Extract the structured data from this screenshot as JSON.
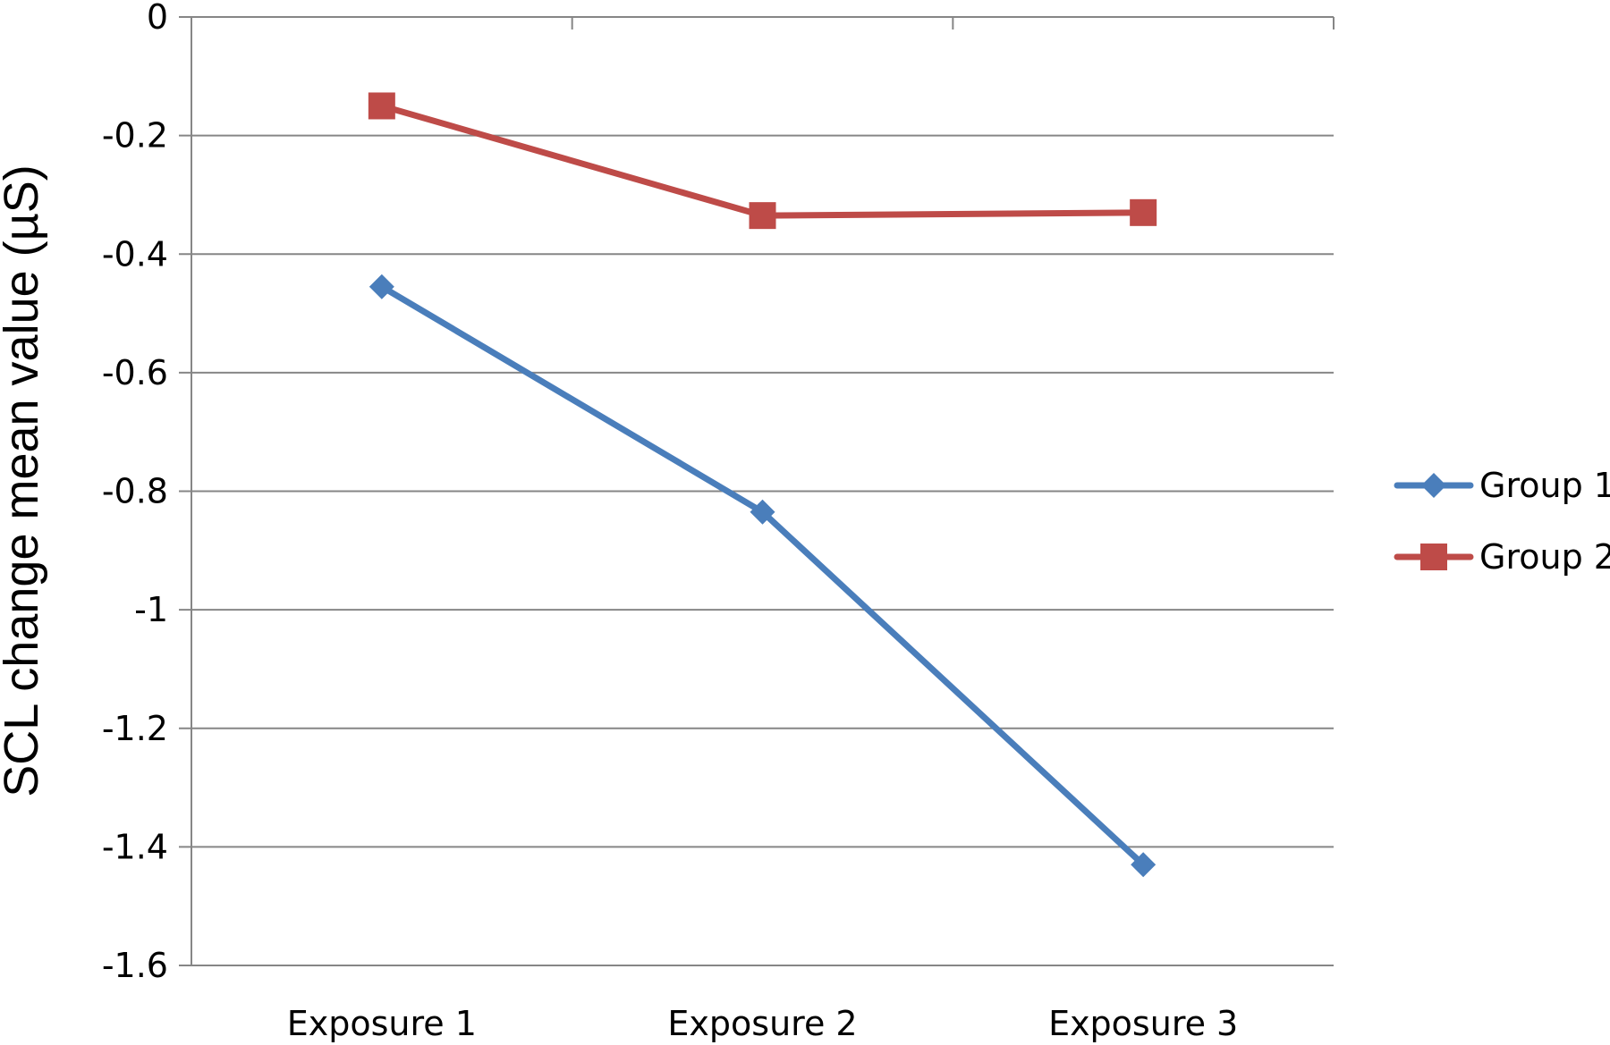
{
  "chart_data": {
    "type": "line",
    "categories": [
      "Exposure 1",
      "Exposure 2",
      "Exposure 3"
    ],
    "series": [
      {
        "name": "Group 1",
        "values": [
          -0.455,
          -0.835,
          -1.43
        ],
        "color": "#4a7ebb",
        "marker": "diamond"
      },
      {
        "name": "Group 2",
        "values": [
          -0.15,
          -0.335,
          -0.33
        ],
        "color": "#be4b48",
        "marker": "square"
      }
    ],
    "title": "",
    "xlabel": "",
    "ylabel": "SCL change mean value (µS)",
    "ylim": [
      -1.6,
      0
    ],
    "yticks": [
      0,
      -0.2,
      -0.4,
      -0.6,
      -0.8,
      -1,
      -1.2,
      -1.4,
      -1.6
    ],
    "ytick_labels": [
      "0",
      "-0.2",
      "-0.4",
      "-0.6",
      "-0.8",
      "-1",
      "-1.2",
      "-1.4",
      "-1.6"
    ],
    "grid": true,
    "legend_position": "right"
  }
}
